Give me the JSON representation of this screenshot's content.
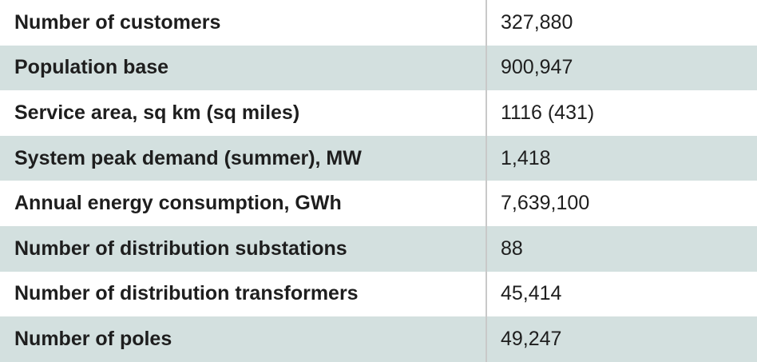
{
  "rows": [
    {
      "label": "Number of customers",
      "value": "327,880"
    },
    {
      "label": "Population base",
      "value": "900,947"
    },
    {
      "label": "Service area, sq km (sq miles)",
      "value": "1116 (431)"
    },
    {
      "label": "System peak demand (summer), MW",
      "value": "1,418"
    },
    {
      "label": "Annual energy consumption, GWh",
      "value": "7,639,100"
    },
    {
      "label": "Number of distribution substations",
      "value": "88"
    },
    {
      "label": "Number of distribution transformers",
      "value": "45,414"
    },
    {
      "label": "Number of poles",
      "value": "49,247"
    }
  ],
  "colors": {
    "stripe": "#d3e0df",
    "divider": "#c9c9c9"
  }
}
